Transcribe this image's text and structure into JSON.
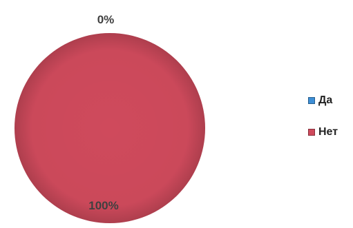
{
  "chart_data": {
    "type": "pie",
    "categories": [
      "Да",
      "Нет"
    ],
    "values": [
      0,
      100
    ],
    "data_labels": [
      "0%",
      "100%"
    ],
    "colors": [
      "#3d8fd6",
      "#cf4a5c"
    ],
    "legend": {
      "placement": "right",
      "entries": [
        "Да",
        "Нет"
      ]
    }
  }
}
